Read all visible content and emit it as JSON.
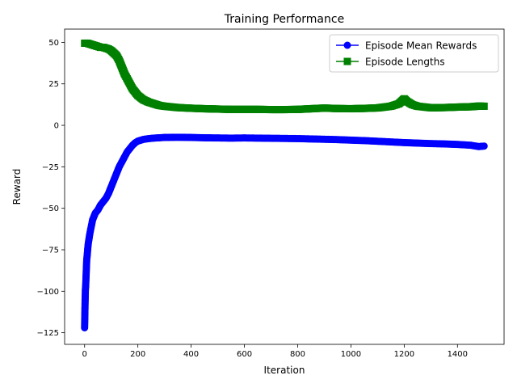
{
  "chart_data": {
    "type": "line",
    "title": "Training Performance",
    "xlabel": "Iteration",
    "ylabel": "Reward",
    "xlim": [
      -75,
      1575
    ],
    "ylim": [
      -132,
      58
    ],
    "xticks": [
      0,
      200,
      400,
      600,
      800,
      1000,
      1200,
      1400
    ],
    "yticks": [
      -125,
      -100,
      -75,
      -50,
      -25,
      0,
      25,
      50
    ],
    "grid": false,
    "legend_position": "top-right",
    "series": [
      {
        "name": "Episode Mean Rewards",
        "color": "#0000ff",
        "marker": "circle",
        "x": [
          0,
          1,
          2,
          3,
          4,
          5,
          6,
          7,
          8,
          10,
          12,
          14,
          17,
          20,
          25,
          30,
          35,
          40,
          50,
          60,
          70,
          80,
          90,
          100,
          110,
          120,
          130,
          140,
          150,
          160,
          170,
          180,
          190,
          200,
          220,
          240,
          260,
          280,
          300,
          350,
          400,
          450,
          500,
          550,
          600,
          650,
          700,
          750,
          800,
          850,
          900,
          950,
          1000,
          1050,
          1100,
          1150,
          1200,
          1250,
          1300,
          1350,
          1400,
          1450,
          1480,
          1500
        ],
        "y": [
          -122,
          -114,
          -105,
          -99,
          -97,
          -93,
          -89,
          -85,
          -81,
          -78,
          -74,
          -71,
          -68,
          -65,
          -61,
          -57,
          -55,
          -53,
          -51,
          -48,
          -46,
          -44,
          -41,
          -37,
          -33,
          -29,
          -25,
          -22,
          -19,
          -16,
          -14,
          -12,
          -10.5,
          -9.5,
          -8.5,
          -8,
          -7.7,
          -7.5,
          -7.3,
          -7.2,
          -7.3,
          -7.5,
          -7.6,
          -7.7,
          -7.6,
          -7.7,
          -7.8,
          -7.9,
          -8,
          -8.2,
          -8.4,
          -8.6,
          -8.9,
          -9.2,
          -9.6,
          -10,
          -10.4,
          -10.7,
          -11,
          -11.2,
          -11.5,
          -12,
          -12.8,
          -12.5
        ]
      },
      {
        "name": "Episode Lengths",
        "color": "#008000",
        "marker": "square",
        "x": [
          0,
          10,
          20,
          30,
          40,
          50,
          60,
          70,
          80,
          90,
          100,
          110,
          120,
          130,
          140,
          150,
          160,
          170,
          180,
          190,
          200,
          220,
          240,
          260,
          280,
          300,
          350,
          400,
          450,
          500,
          550,
          600,
          650,
          700,
          750,
          800,
          850,
          900,
          950,
          1000,
          1050,
          1100,
          1150,
          1180,
          1200,
          1210,
          1230,
          1250,
          1300,
          1350,
          1400,
          1450,
          1480,
          1500
        ],
        "y": [
          49.5,
          49.5,
          49,
          48.5,
          48,
          47.5,
          47,
          47,
          46.5,
          46,
          45,
          43.5,
          42,
          39,
          35,
          31,
          28,
          25,
          22,
          20,
          18,
          15.5,
          14,
          13,
          12,
          11.5,
          10.7,
          10.3,
          10,
          9.8,
          9.6,
          9.6,
          9.6,
          9.5,
          9.5,
          9.6,
          10,
          10.4,
          10.1,
          10,
          10.2,
          10.5,
          11.5,
          13,
          16,
          14.5,
          12.5,
          11.5,
          10.6,
          10.7,
          11,
          11.2,
          11.6,
          11.5
        ]
      }
    ]
  }
}
